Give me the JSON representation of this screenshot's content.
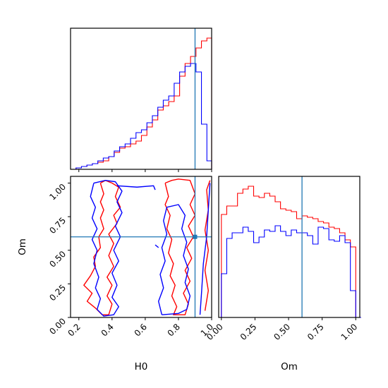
{
  "colors": {
    "series_a": "#ff0000",
    "series_b": "#0000ff",
    "truth": "#1f77b4",
    "frame": "#000000"
  },
  "chart_data": [
    {
      "type": "histogram",
      "panel": "H0 marginal",
      "xlabel": "",
      "ylabel": "",
      "xlim": [
        0.15,
        1.0
      ],
      "ylim": [
        0,
        1.0
      ],
      "bin_edges": [
        0.15,
        0.1829,
        0.2157,
        0.2486,
        0.2814,
        0.3143,
        0.3471,
        0.38,
        0.4129,
        0.4457,
        0.4786,
        0.5114,
        0.5443,
        0.5771,
        0.61,
        0.6429,
        0.6757,
        0.7086,
        0.7414,
        0.7743,
        0.8071,
        0.84,
        0.8729,
        0.9057,
        0.9386,
        0.9714,
        1.0
      ],
      "series": [
        {
          "color_key": "series_a",
          "values": [
            0.0,
            0.01,
            0.02,
            0.03,
            0.04,
            0.05,
            0.06,
            0.09,
            0.12,
            0.15,
            0.16,
            0.18,
            0.2,
            0.24,
            0.3,
            0.35,
            0.42,
            0.45,
            0.48,
            0.52,
            0.66,
            0.75,
            0.8,
            0.86,
            0.91,
            0.93
          ]
        },
        {
          "color_key": "series_b",
          "values": [
            0.0,
            0.01,
            0.02,
            0.03,
            0.04,
            0.06,
            0.08,
            0.09,
            0.13,
            0.16,
            0.18,
            0.22,
            0.26,
            0.28,
            0.33,
            0.38,
            0.44,
            0.49,
            0.52,
            0.61,
            0.69,
            0.73,
            0.75,
            0.69,
            0.32,
            0.06
          ]
        }
      ],
      "truth": 0.9
    },
    {
      "type": "contour",
      "panel": "H0 vs Om",
      "xlabel": "H0",
      "ylabel": "Om",
      "xlim": [
        0.15,
        1.0
      ],
      "ylim": [
        0.0,
        1.05
      ],
      "xticks": [
        "0.2",
        "0.4",
        "0.6",
        "0.8",
        "1.0"
      ],
      "xtick_values": [
        0.2,
        0.4,
        0.6,
        0.8,
        1.0
      ],
      "yticks": [
        "0.00",
        "0.25",
        "0.50",
        "0.75",
        "1.00"
      ],
      "ytick_values": [
        0.0,
        0.25,
        0.5,
        0.75,
        1.0
      ],
      "series": [
        {
          "color_key": "series_a",
          "contours": [
            [
              [
                0.33,
                1.0
              ],
              [
                0.35,
                0.92
              ],
              [
                0.33,
                0.86
              ],
              [
                0.35,
                0.8
              ],
              [
                0.33,
                0.74
              ],
              [
                0.35,
                0.66
              ],
              [
                0.32,
                0.6
              ],
              [
                0.33,
                0.52
              ],
              [
                0.29,
                0.45
              ],
              [
                0.3,
                0.38
              ],
              [
                0.27,
                0.31
              ],
              [
                0.23,
                0.24
              ],
              [
                0.28,
                0.18
              ],
              [
                0.25,
                0.12
              ],
              [
                0.3,
                0.07
              ],
              [
                0.34,
                0.02
              ],
              [
                0.38,
                0.02
              ],
              [
                0.4,
                0.1
              ],
              [
                0.37,
                0.16
              ],
              [
                0.4,
                0.24
              ],
              [
                0.37,
                0.3
              ],
              [
                0.41,
                0.38
              ],
              [
                0.38,
                0.46
              ],
              [
                0.41,
                0.55
              ],
              [
                0.38,
                0.62
              ],
              [
                0.43,
                0.7
              ],
              [
                0.41,
                0.76
              ],
              [
                0.45,
                0.82
              ],
              [
                0.42,
                0.9
              ],
              [
                0.44,
                0.97
              ],
              [
                0.4,
                1.0
              ],
              [
                0.36,
                1.02
              ],
              [
                0.33,
                1.0
              ]
            ],
            [
              [
                0.72,
                1.0
              ],
              [
                0.74,
                0.9
              ],
              [
                0.72,
                0.84
              ],
              [
                0.75,
                0.76
              ],
              [
                0.73,
                0.66
              ],
              [
                0.76,
                0.58
              ],
              [
                0.74,
                0.48
              ],
              [
                0.77,
                0.4
              ],
              [
                0.75,
                0.31
              ],
              [
                0.78,
                0.24
              ],
              [
                0.76,
                0.16
              ],
              [
                0.79,
                0.08
              ],
              [
                0.77,
                0.02
              ],
              [
                0.84,
                0.02
              ],
              [
                0.86,
                0.1
              ],
              [
                0.83,
                0.18
              ],
              [
                0.87,
                0.27
              ],
              [
                0.84,
                0.35
              ],
              [
                0.88,
                0.44
              ],
              [
                0.85,
                0.52
              ],
              [
                0.89,
                0.6
              ],
              [
                0.86,
                0.68
              ],
              [
                0.9,
                0.76
              ],
              [
                0.87,
                0.84
              ],
              [
                0.9,
                0.92
              ],
              [
                0.87,
                1.02
              ],
              [
                0.8,
                1.03
              ],
              [
                0.76,
                1.02
              ],
              [
                0.72,
                1.0
              ]
            ],
            [
              [
                0.96,
                0.05
              ],
              [
                0.98,
                0.2
              ],
              [
                0.96,
                0.35
              ],
              [
                0.98,
                0.5
              ],
              [
                0.96,
                0.65
              ],
              [
                0.98,
                0.8
              ],
              [
                0.97,
                0.95
              ],
              [
                0.99,
                1.02
              ]
            ]
          ]
        },
        {
          "color_key": "series_b",
          "contours": [
            [
              [
                0.29,
                1.0
              ],
              [
                0.27,
                0.9
              ],
              [
                0.3,
                0.82
              ],
              [
                0.28,
                0.74
              ],
              [
                0.31,
                0.66
              ],
              [
                0.28,
                0.58
              ],
              [
                0.31,
                0.5
              ],
              [
                0.29,
                0.4
              ],
              [
                0.32,
                0.3
              ],
              [
                0.3,
                0.22
              ],
              [
                0.33,
                0.14
              ],
              [
                0.31,
                0.06
              ],
              [
                0.35,
                0.01
              ],
              [
                0.41,
                0.02
              ],
              [
                0.44,
                0.08
              ],
              [
                0.4,
                0.15
              ],
              [
                0.43,
                0.24
              ],
              [
                0.4,
                0.33
              ],
              [
                0.44,
                0.42
              ],
              [
                0.41,
                0.5
              ],
              [
                0.45,
                0.6
              ],
              [
                0.42,
                0.68
              ],
              [
                0.46,
                0.78
              ],
              [
                0.43,
                0.86
              ],
              [
                0.46,
                0.94
              ],
              [
                0.42,
                1.01
              ],
              [
                0.36,
                1.02
              ],
              [
                0.29,
                1.0
              ]
            ],
            [
              [
                0.43,
                0.98
              ],
              [
                0.55,
                0.97
              ],
              [
                0.65,
                0.98
              ],
              [
                0.66,
                0.95
              ]
            ],
            [
              [
                0.7,
                0.02
              ],
              [
                0.68,
                0.12
              ],
              [
                0.71,
                0.22
              ],
              [
                0.69,
                0.32
              ],
              [
                0.72,
                0.42
              ],
              [
                0.7,
                0.52
              ],
              [
                0.73,
                0.62
              ],
              [
                0.71,
                0.72
              ],
              [
                0.73,
                0.82
              ],
              [
                0.8,
                0.84
              ],
              [
                0.84,
                0.76
              ],
              [
                0.82,
                0.66
              ],
              [
                0.85,
                0.56
              ],
              [
                0.83,
                0.46
              ],
              [
                0.86,
                0.36
              ],
              [
                0.84,
                0.26
              ],
              [
                0.87,
                0.16
              ],
              [
                0.85,
                0.06
              ],
              [
                0.8,
                0.03
              ],
              [
                0.7,
                0.02
              ]
            ],
            [
              [
                0.93,
                0.02
              ],
              [
                0.94,
                0.2
              ],
              [
                0.95,
                0.4
              ],
              [
                0.97,
                0.6
              ],
              [
                0.98,
                0.8
              ],
              [
                0.99,
                1.0
              ]
            ],
            [
              [
                0.66,
                0.54
              ],
              [
                0.68,
                0.52
              ]
            ]
          ]
        }
      ],
      "truth": {
        "x": 0.9,
        "y": 0.6
      }
    },
    {
      "type": "histogram",
      "panel": "Om marginal",
      "xlabel": "Om",
      "ylabel": "",
      "xlim": [
        -0.02,
        1.03
      ],
      "ylim": [
        0,
        1.0
      ],
      "xticks": [
        "0.00",
        "0.25",
        "0.50",
        "0.75",
        "1.00"
      ],
      "xtick_values": [
        0.0,
        0.25,
        0.5,
        0.75,
        1.0
      ],
      "bin_edges": [
        0.0,
        0.04,
        0.08,
        0.12,
        0.16,
        0.2,
        0.24,
        0.28,
        0.32,
        0.36,
        0.4,
        0.44,
        0.48,
        0.52,
        0.56,
        0.6,
        0.64,
        0.68,
        0.72,
        0.76,
        0.8,
        0.84,
        0.88,
        0.92,
        0.96,
        1.0,
        1.04
      ],
      "series": [
        {
          "color_key": "series_a",
          "values": [
            0.73,
            0.79,
            0.79,
            0.88,
            0.91,
            0.93,
            0.86,
            0.85,
            0.88,
            0.86,
            0.82,
            0.77,
            0.76,
            0.75,
            0.7,
            0.72,
            0.71,
            0.7,
            0.68,
            0.67,
            0.64,
            0.63,
            0.6,
            0.55,
            0.5,
            0.0
          ]
        },
        {
          "color_key": "series_b",
          "values": [
            0.31,
            0.56,
            0.6,
            0.6,
            0.64,
            0.61,
            0.53,
            0.57,
            0.62,
            0.61,
            0.65,
            0.61,
            0.58,
            0.62,
            0.6,
            0.6,
            0.58,
            0.52,
            0.64,
            0.63,
            0.55,
            0.54,
            0.58,
            0.53,
            0.19,
            0.0
          ]
        }
      ],
      "truth": 0.6
    }
  ]
}
